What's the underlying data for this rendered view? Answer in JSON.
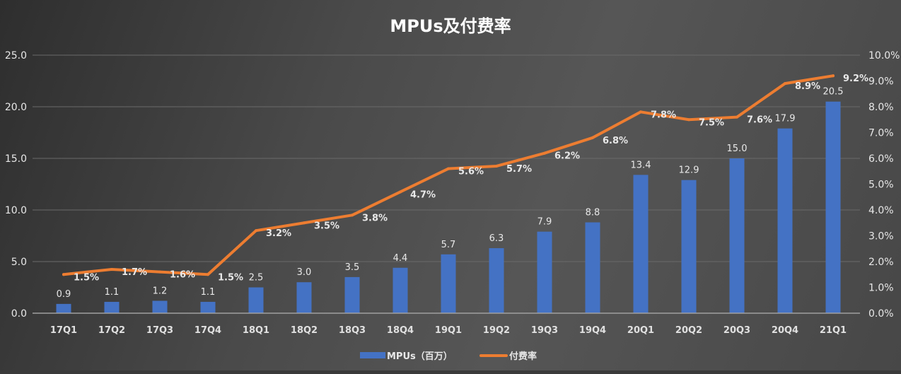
{
  "chart_data": {
    "type": "bar+line",
    "title": "MPUs及付费率",
    "categories": [
      "17Q1",
      "17Q2",
      "17Q3",
      "17Q4",
      "18Q1",
      "18Q2",
      "18Q3",
      "18Q4",
      "19Q1",
      "19Q2",
      "19Q3",
      "19Q4",
      "20Q1",
      "20Q2",
      "20Q3",
      "20Q4",
      "21Q1"
    ],
    "series": [
      {
        "name": "MPUs（百万）",
        "type": "bar",
        "axis": "left",
        "color": "#4472c4",
        "values": [
          0.9,
          1.1,
          1.2,
          1.1,
          2.5,
          3.0,
          3.5,
          4.4,
          5.7,
          6.3,
          7.9,
          8.8,
          13.4,
          12.9,
          15.0,
          17.9,
          20.5
        ],
        "labels": [
          "0.9",
          "1.1",
          "1.2",
          "1.1",
          "2.5",
          "3.0",
          "3.5",
          "4.4",
          "5.7",
          "6.3",
          "7.9",
          "8.8",
          "13.4",
          "12.9",
          "15.0",
          "17.9",
          "20.5"
        ]
      },
      {
        "name": "付费率",
        "type": "line",
        "axis": "right",
        "color": "#ed7d31",
        "values": [
          1.5,
          1.7,
          1.6,
          1.5,
          3.2,
          3.5,
          3.8,
          4.7,
          5.6,
          5.7,
          6.2,
          6.8,
          7.8,
          7.5,
          7.6,
          8.9,
          9.2
        ],
        "labels": [
          "1.5%",
          "1.7%",
          "1.6%",
          "1.5%",
          "3.2%",
          "3.5%",
          "3.8%",
          "4.7%",
          "5.6%",
          "5.7%",
          "6.2%",
          "6.8%",
          "7.8%",
          "7.5%",
          "7.6%",
          "8.9%",
          "9.2%"
        ]
      }
    ],
    "left_axis": {
      "ylim": [
        0,
        25
      ],
      "ticks": [
        "0.0",
        "5.0",
        "10.0",
        "15.0",
        "20.0",
        "25.0"
      ]
    },
    "right_axis": {
      "ylim": [
        0,
        10
      ],
      "unit": "%",
      "ticks": [
        "0.0%",
        "1.0%",
        "2.0%",
        "3.0%",
        "4.0%",
        "5.0%",
        "6.0%",
        "7.0%",
        "8.0%",
        "9.0%",
        "10.0%"
      ]
    },
    "grid": true,
    "legend": "bottom"
  }
}
